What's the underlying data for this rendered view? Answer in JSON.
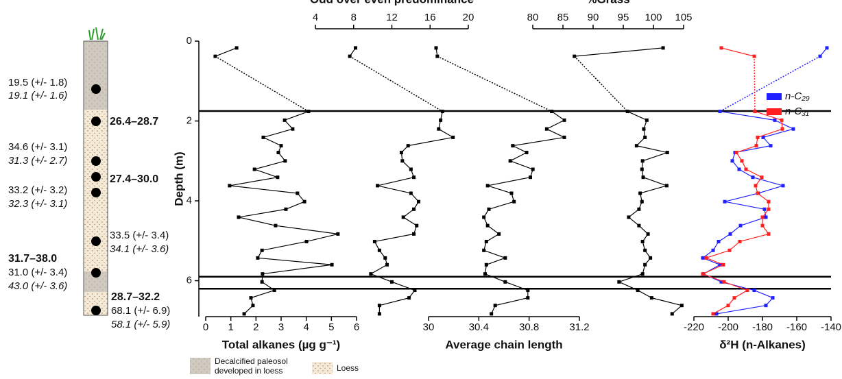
{
  "chart_data": {
    "type": "line",
    "ylabel": "Depth (m)",
    "ylim": [
      0,
      6.9
    ],
    "yticks": [
      0,
      2,
      4,
      6
    ],
    "depth": [
      0.17,
      0.38,
      1.76,
      1.98,
      2.2,
      2.41,
      2.62,
      2.79,
      3.0,
      3.21,
      3.41,
      3.62,
      3.81,
      4.02,
      4.21,
      4.41,
      4.62,
      4.83,
      5.02,
      5.24,
      5.43,
      5.6,
      5.83,
      6.03,
      6.24,
      6.43,
      6.62,
      6.83
    ],
    "boundaries": [
      1.75,
      5.9,
      6.2
    ],
    "panels": [
      {
        "xlabel": "Total alkanes (µg g⁻¹)",
        "xlim": [
          0,
          6
        ],
        "xticks": [
          0,
          1,
          2,
          3,
          4,
          5,
          6
        ],
        "series": [
          {
            "color": "#000000",
            "values": [
              1.23,
              0.38,
              4.09,
              3.14,
              3.46,
              2.29,
              3.0,
              2.89,
              3.16,
              1.94,
              2.86,
              0.95,
              3.65,
              3.93,
              3.19,
              1.31,
              2.78,
              5.26,
              4.01,
              2.24,
              2.07,
              5.02,
              2.26,
              2.24,
              2.73,
              1.8,
              1.88,
              1.53
            ]
          }
        ]
      },
      {
        "xlabel": "Odd over even predominance",
        "xlim": [
          4,
          20
        ],
        "xticks": [
          4,
          8,
          12,
          16,
          20
        ],
        "series": [
          {
            "color": "#000000",
            "values": [
              8.2,
              7.6,
              17.3,
              17.1,
              16.9,
              18.4,
              13.7,
              13.0,
              13.1,
              14.0,
              14.3,
              10.5,
              14.0,
              14.8,
              14.3,
              13.2,
              14.6,
              14.3,
              10.2,
              10.7,
              11.3,
              11.5,
              9.8,
              12.0,
              14.4,
              13.8,
              10.7,
              10.7
            ]
          }
        ]
      },
      {
        "xlabel": "Average chain length",
        "xlim": [
          30,
          31.2
        ],
        "xticks": [
          30,
          30.4,
          30.8,
          31.2
        ],
        "series": [
          {
            "color": "#000000",
            "values": [
              30.06,
              30.07,
              30.98,
              31.08,
              30.94,
              31.08,
              30.67,
              30.78,
              30.65,
              30.83,
              30.81,
              30.47,
              30.66,
              30.68,
              30.48,
              30.44,
              30.47,
              30.56,
              30.46,
              30.44,
              30.61,
              30.46,
              30.45,
              30.61,
              30.79,
              30.79,
              30.53,
              30.5
            ]
          }
        ]
      },
      {
        "xlabel": "%Grass",
        "xlim": [
          80,
          105
        ],
        "xticks": [
          80,
          85,
          90,
          95,
          100,
          105
        ],
        "series": [
          {
            "color": "#000000",
            "values": [
              101.6,
              86.9,
              95.7,
              98.9,
              98.4,
              98.6,
              97.2,
              102.3,
              98.2,
              98.1,
              98.3,
              102.2,
              97.8,
              98.1,
              97.6,
              95.9,
              97.6,
              99.1,
              98.2,
              98.6,
              99.5,
              98.6,
              98.2,
              94.3,
              97.4,
              99.7,
              104.7,
              103.1
            ]
          }
        ]
      },
      {
        "xlabel": "δ²H (n-Alkanes)",
        "xlim": [
          -220,
          -140
        ],
        "xticks": [
          -220,
          -200,
          -180,
          -160,
          -140
        ],
        "series": [
          {
            "name": "n-C₂₉",
            "color": "#1f1fff",
            "values": [
              -142.4,
              -146.4,
              -204.8,
              -172.8,
              -162.0,
              -179.6,
              -175.2,
              -196.0,
              -197.6,
              -193.6,
              -185.6,
              -168.0,
              -182.4,
              -202.0,
              -178.8,
              -178.0,
              -192.8,
              -198.8,
              -205.6,
              -208.8,
              -214.8,
              -204.8,
              -214.4,
              -204.0,
              -184.8,
              -174.0,
              -178.0,
              -206.8
            ]
          },
          {
            "name": "n-C₃₁",
            "color": "#ff1f1f",
            "values": [
              -204.0,
              -184.8,
              -184.4,
              -168.8,
              -168.4,
              -182.8,
              -183.6,
              -195.2,
              -192.0,
              -189.6,
              -180.4,
              -184.0,
              -182.8,
              -176.4,
              -176.4,
              -180.0,
              -180.0,
              -176.4,
              -193.2,
              -199.2,
              -212.8,
              -202.8,
              -214.8,
              -202.4,
              -188.8,
              -196.4,
              -200.0,
              -208.8
            ]
          }
        ]
      }
    ]
  },
  "column": {
    "ages": [
      "19.5 (+/- 1.8)",
      "19.1 (+/- 1.6)",
      "26.4–28.7",
      "34.6 (+/- 3.1)",
      "31.3 (+/- 2.7)",
      "27.4–30.0",
      "33.2 (+/- 3.2)",
      "32.3 (+/- 3.1)",
      "33.5 (+/- 3.4)",
      "34.1 (+/- 3.6)",
      "31.7–38.0",
      "31.0 (+/- 3.4)",
      "43.0 (+/- 3.6)",
      "28.7–32.2",
      "68.1 (+/- 6.9)",
      "58.1 (+/- 5.9)"
    ],
    "legend": {
      "paleosol": [
        "Decalcified paleosol",
        "developed in loess"
      ],
      "loess": "Loess"
    }
  }
}
